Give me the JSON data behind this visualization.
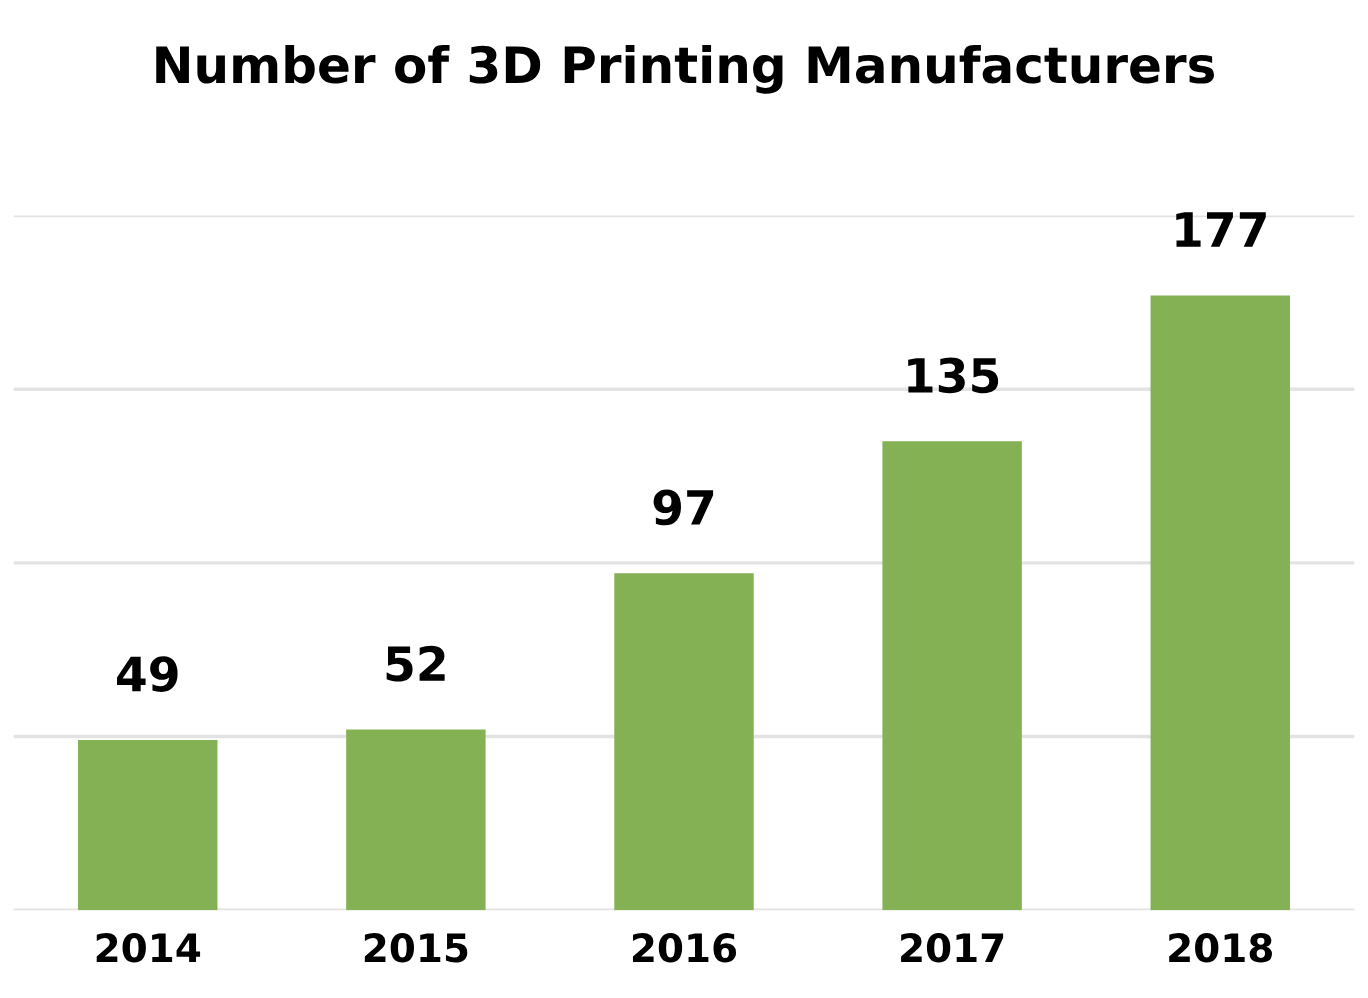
{
  "chart_data": {
    "type": "bar",
    "title": "Number of 3D Printing Manufacturers",
    "categories": [
      "2014",
      "2015",
      "2016",
      "2017",
      "2018"
    ],
    "values": [
      49,
      52,
      97,
      135,
      177
    ],
    "color": "#85b155",
    "ylim": [
      0,
      200
    ],
    "yticks": [
      {
        "value": 0,
        "label": null
      },
      {
        "value": 50,
        "label": null
      },
      {
        "value": 100,
        "label": null
      },
      {
        "value": 150,
        "label": null
      },
      {
        "value": 200,
        "label": null
      }
    ],
    "grid": "y",
    "tick_labels": "x",
    "data_labels": true,
    "legend": false
  }
}
